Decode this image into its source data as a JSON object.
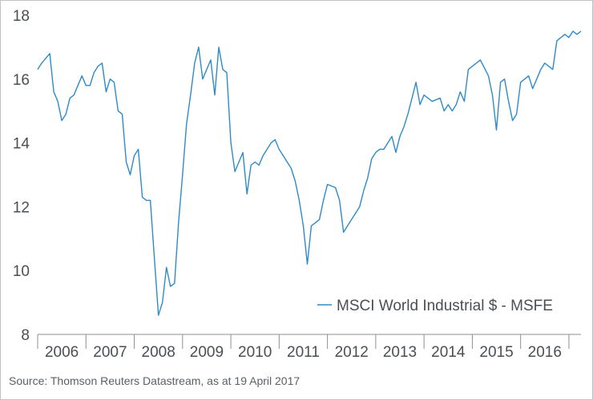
{
  "source_note": "Source: Thomson Reuters Datastream, as at 19 April 2017",
  "chart_data": {
    "type": "line",
    "title": "",
    "xlabel": "",
    "ylabel": "",
    "ylim": [
      8,
      18
    ],
    "yticks": [
      "8",
      "10",
      "12",
      "14",
      "16",
      "18"
    ],
    "xlim": [
      "2006-01",
      "2017-04"
    ],
    "xticks": [
      "2006",
      "2007",
      "2008",
      "2009",
      "2010",
      "2011",
      "2012",
      "2013",
      "2014",
      "2015",
      "2016"
    ],
    "grid": false,
    "legend": "bottom-right",
    "line_color": "#2e8bc7",
    "series": [
      {
        "name": "MSCI World Industrial $ - MSFE",
        "x": [
          "2006-01",
          "2006-02",
          "2006-04",
          "2006-05",
          "2006-06",
          "2006-07",
          "2006-08",
          "2006-09",
          "2006-10",
          "2006-11",
          "2006-12",
          "2007-01",
          "2007-02",
          "2007-03",
          "2007-04",
          "2007-05",
          "2007-06",
          "2007-07",
          "2007-08",
          "2007-09",
          "2007-10",
          "2007-11",
          "2007-12",
          "2008-01",
          "2008-02",
          "2008-03",
          "2008-04",
          "2008-05",
          "2008-06",
          "2008-07",
          "2008-08",
          "2008-09",
          "2008-10",
          "2008-11",
          "2008-12",
          "2009-01",
          "2009-02",
          "2009-03",
          "2009-04",
          "2009-05",
          "2009-06",
          "2009-07",
          "2009-08",
          "2009-09",
          "2009-10",
          "2009-11",
          "2009-12",
          "2010-01",
          "2010-02",
          "2010-04",
          "2010-05",
          "2010-06",
          "2010-07",
          "2010-08",
          "2010-09",
          "2010-11",
          "2010-12",
          "2011-01",
          "2011-02",
          "2011-04",
          "2011-05",
          "2011-06",
          "2011-07",
          "2011-08",
          "2011-09",
          "2011-10",
          "2011-11",
          "2011-12",
          "2012-01",
          "2012-03",
          "2012-04",
          "2012-05",
          "2012-06",
          "2012-07",
          "2012-08",
          "2012-09",
          "2012-10",
          "2012-11",
          "2012-12",
          "2013-01",
          "2013-02",
          "2013-03",
          "2013-05",
          "2013-06",
          "2013-07",
          "2013-08",
          "2013-09",
          "2013-10",
          "2013-11",
          "2013-12",
          "2014-01",
          "2014-02",
          "2014-03",
          "2014-05",
          "2014-06",
          "2014-07",
          "2014-08",
          "2014-09",
          "2014-10",
          "2014-11",
          "2014-12",
          "2015-01",
          "2015-02",
          "2015-03",
          "2015-05",
          "2015-06",
          "2015-07",
          "2015-08",
          "2015-09",
          "2015-10",
          "2015-11",
          "2015-12",
          "2016-01",
          "2016-02",
          "2016-03",
          "2016-04",
          "2016-06",
          "2016-07",
          "2016-08",
          "2016-09",
          "2016-10",
          "2016-11",
          "2016-12",
          "2017-01",
          "2017-02",
          "2017-03",
          "2017-04"
        ],
        "values": [
          16.3,
          16.5,
          16.8,
          15.6,
          15.3,
          14.7,
          14.9,
          15.4,
          15.5,
          15.8,
          16.1,
          15.8,
          15.8,
          16.2,
          16.4,
          16.5,
          15.6,
          16.0,
          15.9,
          15.0,
          14.9,
          13.4,
          13.0,
          13.6,
          13.8,
          12.3,
          12.2,
          12.2,
          10.4,
          8.6,
          9.0,
          10.1,
          9.5,
          9.6,
          11.5,
          13.0,
          14.6,
          15.5,
          16.5,
          17.0,
          16.0,
          16.3,
          16.6,
          15.5,
          17.0,
          16.3,
          16.2,
          14.0,
          13.1,
          13.7,
          12.4,
          13.3,
          13.4,
          13.3,
          13.6,
          14.0,
          14.1,
          13.8,
          13.6,
          13.2,
          12.8,
          12.2,
          11.4,
          10.2,
          11.4,
          11.5,
          11.6,
          12.2,
          12.7,
          12.6,
          12.2,
          11.2,
          11.4,
          11.6,
          11.8,
          12.0,
          12.5,
          12.9,
          13.5,
          13.7,
          13.8,
          13.8,
          14.2,
          13.7,
          14.2,
          14.5,
          14.9,
          15.4,
          15.9,
          15.2,
          15.5,
          15.4,
          15.3,
          15.4,
          15.0,
          15.2,
          15.0,
          15.2,
          15.6,
          15.3,
          16.3,
          16.4,
          16.5,
          16.6,
          16.1,
          15.5,
          14.4,
          15.9,
          16.0,
          15.3,
          14.7,
          14.9,
          15.9,
          16.0,
          16.1,
          15.7,
          16.3,
          16.5,
          16.4,
          16.3,
          17.2,
          17.3,
          17.4,
          17.3,
          17.5,
          17.4,
          17.5
        ]
      }
    ]
  }
}
